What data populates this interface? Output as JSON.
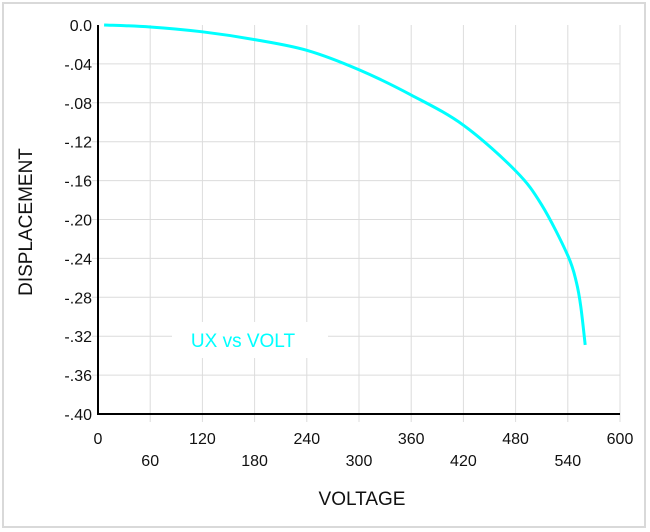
{
  "chart_data": {
    "type": "line",
    "title": "",
    "xlabel": "VOLTAGE",
    "ylabel": "DISPLACEMENT",
    "xlim": [
      0,
      600
    ],
    "ylim": [
      -0.4,
      0.0
    ],
    "grid": true,
    "legend_placement": "inside-lower-left",
    "x_ticks": [
      "0",
      "60",
      "120",
      "180",
      "240",
      "300",
      "360",
      "420",
      "480",
      "540",
      "600"
    ],
    "y_ticks": [
      "0.0",
      "-.04",
      "-.08",
      "-.12",
      "-.16",
      "-.20",
      "-.24",
      "-.28",
      "-.32",
      "-.36",
      "-.40"
    ],
    "series": [
      {
        "name": "UX vs VOLT",
        "color": "#00ffff",
        "x": [
          7,
          60,
          120,
          180,
          240,
          300,
          360,
          420,
          480,
          510,
          540,
          550,
          555,
          560
        ],
        "y": [
          0.0,
          -0.002,
          -0.007,
          -0.015,
          -0.026,
          -0.046,
          -0.072,
          -0.103,
          -0.15,
          -0.185,
          -0.237,
          -0.265,
          -0.29,
          -0.329
        ]
      }
    ]
  }
}
